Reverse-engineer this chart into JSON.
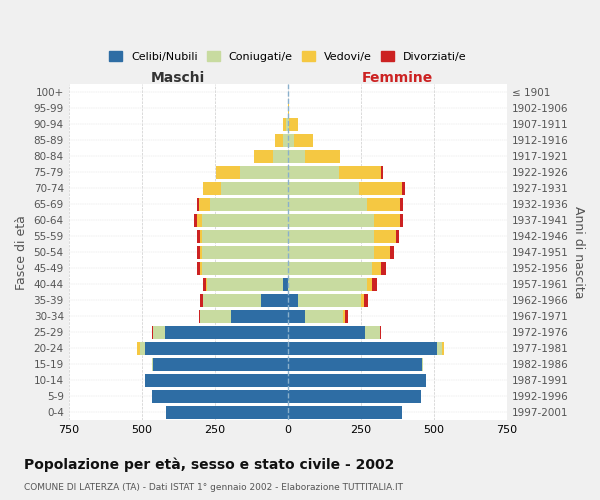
{
  "age_groups": [
    "0-4",
    "5-9",
    "10-14",
    "15-19",
    "20-24",
    "25-29",
    "30-34",
    "35-39",
    "40-44",
    "45-49",
    "50-54",
    "55-59",
    "60-64",
    "65-69",
    "70-74",
    "75-79",
    "80-84",
    "85-89",
    "90-94",
    "95-99",
    "100+"
  ],
  "birth_years": [
    "1997-2001",
    "1992-1996",
    "1987-1991",
    "1982-1986",
    "1977-1981",
    "1972-1976",
    "1967-1971",
    "1962-1966",
    "1957-1961",
    "1952-1956",
    "1947-1951",
    "1942-1946",
    "1937-1941",
    "1932-1936",
    "1927-1931",
    "1922-1926",
    "1917-1921",
    "1912-1916",
    "1907-1911",
    "1902-1906",
    "≤ 1901"
  ],
  "maschi_celibe": [
    415,
    465,
    490,
    460,
    490,
    420,
    195,
    90,
    15,
    0,
    0,
    0,
    0,
    0,
    0,
    0,
    0,
    0,
    0,
    0,
    0
  ],
  "maschi_coniugato": [
    0,
    0,
    0,
    5,
    15,
    40,
    105,
    200,
    260,
    295,
    295,
    295,
    295,
    265,
    230,
    165,
    50,
    15,
    5,
    0,
    0
  ],
  "maschi_vedovo": [
    0,
    0,
    0,
    0,
    10,
    0,
    0,
    0,
    5,
    5,
    5,
    5,
    15,
    40,
    60,
    80,
    65,
    30,
    10,
    0,
    0
  ],
  "maschi_divorziato": [
    0,
    0,
    0,
    0,
    0,
    5,
    5,
    10,
    10,
    10,
    10,
    10,
    10,
    5,
    0,
    0,
    0,
    0,
    0,
    0,
    0
  ],
  "femmine_celibe": [
    390,
    455,
    475,
    460,
    510,
    265,
    60,
    35,
    0,
    0,
    0,
    0,
    0,
    0,
    0,
    0,
    0,
    0,
    0,
    0,
    0
  ],
  "femmine_coniugato": [
    0,
    0,
    0,
    5,
    20,
    50,
    130,
    215,
    270,
    290,
    295,
    295,
    295,
    270,
    245,
    175,
    60,
    20,
    5,
    0,
    0
  ],
  "femmine_vedovo": [
    0,
    0,
    0,
    0,
    5,
    0,
    5,
    10,
    20,
    30,
    55,
    75,
    90,
    115,
    145,
    145,
    120,
    65,
    30,
    5,
    0
  ],
  "femmine_divorziato": [
    0,
    0,
    0,
    0,
    0,
    5,
    10,
    15,
    15,
    15,
    15,
    10,
    10,
    10,
    10,
    5,
    0,
    0,
    0,
    0,
    0
  ],
  "color_celibe": "#2e6da4",
  "color_coniugato": "#c8dba0",
  "color_vedovo": "#f5c842",
  "color_divorziato": "#cc2222",
  "xlim": 750,
  "title": "Popolazione per età, sesso e stato civile - 2002",
  "subtitle": "COMUNE DI LATERZA (TA) - Dati ISTAT 1° gennaio 2002 - Elaborazione TUTTITALIA.IT",
  "ylabel_left": "Fasce di età",
  "ylabel_right": "Anni di nascita",
  "xlabel_left": "Maschi",
  "xlabel_right": "Femmine",
  "bg_color": "#f0f0f0",
  "plot_bg_color": "#ffffff"
}
